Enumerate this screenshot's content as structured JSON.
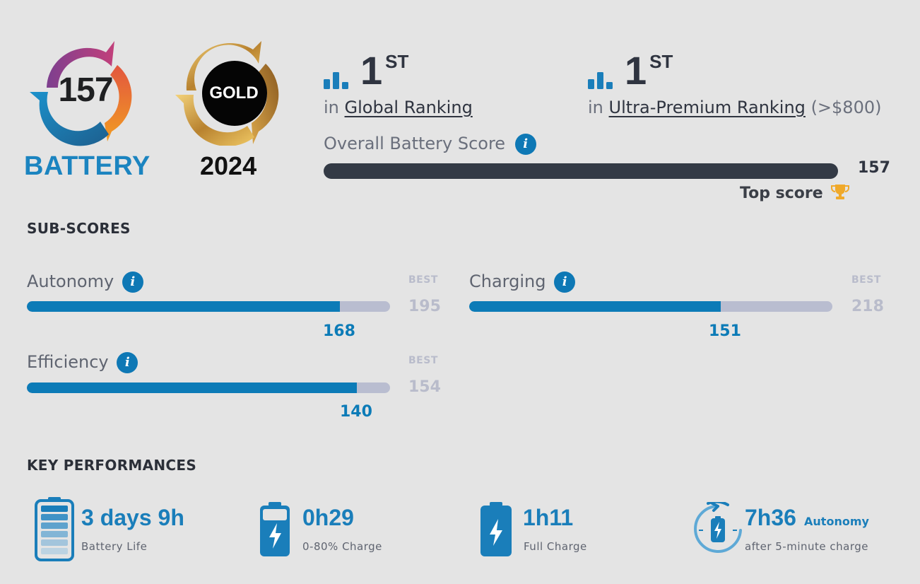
{
  "header": {
    "battery_score": "157",
    "battery_label": "BATTERY",
    "badge_label": "GOLD",
    "badge_year": "2024"
  },
  "rankings": [
    {
      "rank": "1",
      "suffix": "ST",
      "prefix": "in",
      "link": "Global Ranking",
      "note": ""
    },
    {
      "rank": "1",
      "suffix": "ST",
      "prefix": "in",
      "link": "Ultra-Premium Ranking",
      "note": "(>$800)"
    }
  ],
  "overall": {
    "label": "Overall Battery Score",
    "value": "157",
    "fraction": 1.0,
    "top_score_label": "Top score"
  },
  "sub_scores": {
    "title": "SUB-SCORES",
    "best_label": "BEST",
    "items": [
      {
        "label": "Autonomy",
        "value": 168,
        "best": 195
      },
      {
        "label": "Charging",
        "value": 151,
        "best": 218
      },
      {
        "label": "Efficiency",
        "value": 140,
        "best": 154
      }
    ]
  },
  "key_performances": {
    "title": "KEY PERFORMANCES",
    "items": [
      {
        "value": "3 days 9h",
        "label": "Battery Life",
        "icon": "battery-life-icon"
      },
      {
        "value": "0h29",
        "label": "0-80% Charge",
        "icon": "charge-icon"
      },
      {
        "value": "1h11",
        "label": "Full Charge",
        "icon": "full-charge-icon"
      },
      {
        "value": "7h36",
        "extra": "Autonomy",
        "label": "after 5-minute charge",
        "icon": "quick-charge-icon"
      }
    ]
  },
  "colors": {
    "accent": "#0c7bb7",
    "track": "#b9bdd0",
    "overall_bar": "#333a45",
    "background": "#e4e4e4"
  }
}
